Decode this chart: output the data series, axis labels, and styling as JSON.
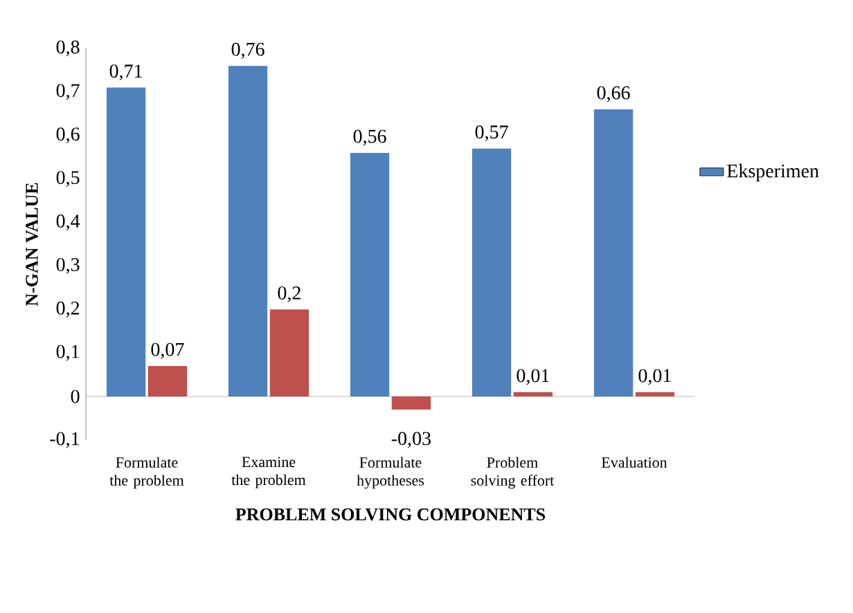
{
  "chart_data": {
    "type": "bar",
    "xlabel": "PROBLEM SOLVING COMPONENTS",
    "ylabel": "N-GAN VALUE",
    "categories": [
      "Formulate the problem",
      "Examine the problem",
      "Formulate hypotheses",
      "Problem solving effort",
      "Evaluation"
    ],
    "series": [
      {
        "name": "Eksperimen",
        "color": "#4f81bd",
        "values": [
          0.71,
          0.76,
          0.56,
          0.57,
          0.66
        ],
        "value_labels": [
          "0,71",
          "0,76",
          "0,56",
          "0,57",
          "0,66"
        ]
      },
      {
        "color": "#c0504d",
        "values": [
          0.07,
          0.2,
          -0.03,
          0.01,
          0.01
        ],
        "value_labels": [
          "0,07",
          "0,2",
          "-0,03",
          "0,01",
          "0,01"
        ]
      }
    ],
    "ylim": [
      -0.1,
      0.8
    ],
    "yticks": [
      {
        "value": -0.1,
        "label": "-0,1"
      },
      0,
      {
        "value": 0.1,
        "label": "0,1"
      },
      {
        "value": 0.2,
        "label": "0,2"
      },
      {
        "value": 0.3,
        "label": "0,3"
      },
      {
        "value": 0.4,
        "label": "0,4"
      },
      {
        "value": 0.5,
        "label": "0,5"
      },
      {
        "value": 0.6,
        "label": "0,6"
      },
      {
        "value": 0.7,
        "label": "0,7"
      },
      {
        "value": 0.8,
        "label": "0,8"
      }
    ],
    "ref_lines": [
      {
        "axis": "y",
        "value": 0,
        "color": "#a6a6a6"
      }
    ],
    "legend": "right",
    "grid": false
  }
}
